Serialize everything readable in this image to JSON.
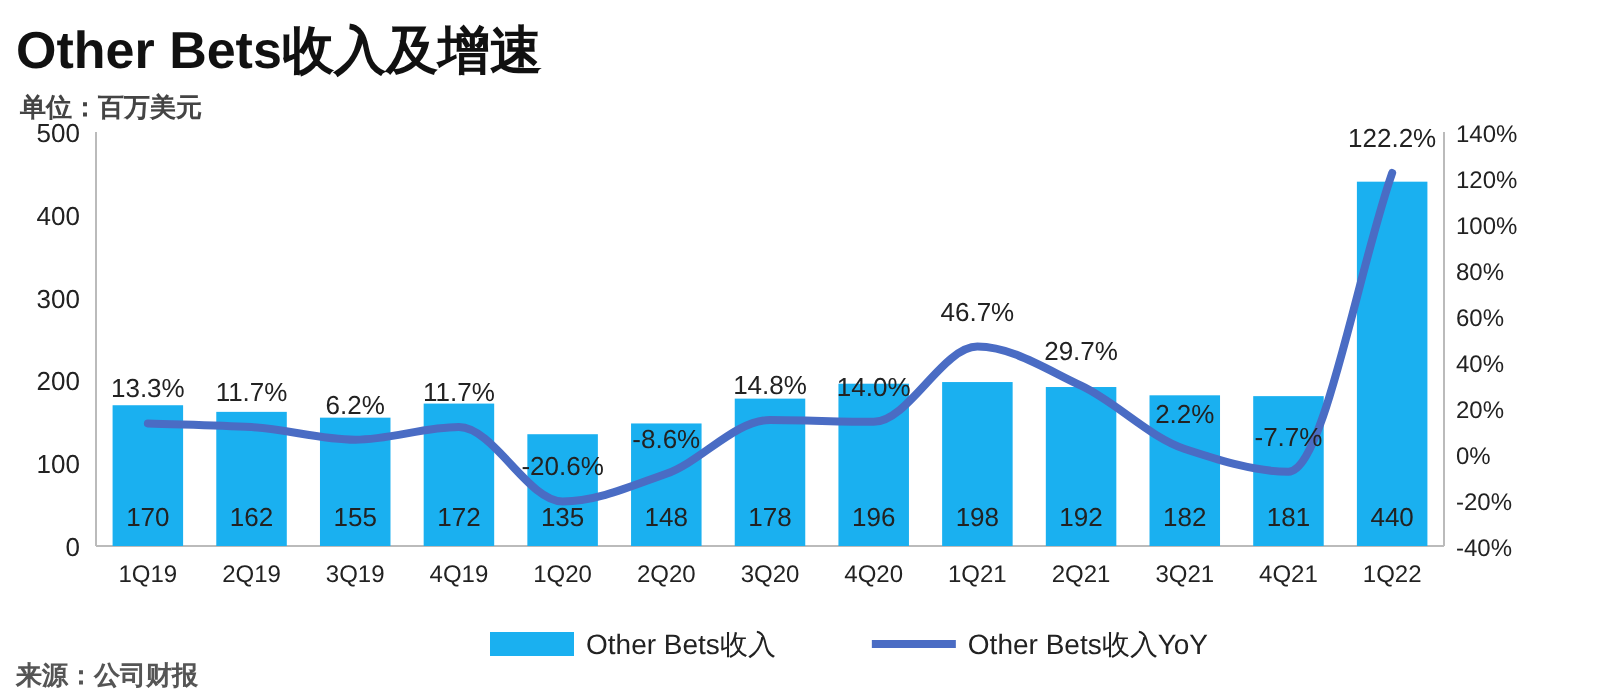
{
  "chart_data": {
    "type": "bar",
    "title": "Other Bets收入及增速",
    "subtitle": "单位：百万美元",
    "categories": [
      "1Q19",
      "2Q19",
      "3Q19",
      "4Q19",
      "1Q20",
      "2Q20",
      "3Q20",
      "4Q20",
      "1Q21",
      "2Q21",
      "3Q21",
      "4Q21",
      "1Q22"
    ],
    "series": [
      {
        "name": "Other Bets收入",
        "color": "#1ab0f0",
        "values": [
          170,
          162,
          155,
          172,
          135,
          148,
          178,
          196,
          198,
          192,
          182,
          181,
          440
        ],
        "value_labels": [
          "170",
          "162",
          "155",
          "172",
          "135",
          "148",
          "178",
          "196",
          "198",
          "192",
          "182",
          "181",
          "440"
        ]
      },
      {
        "name": "Other Bets收入YoY",
        "type": "line",
        "axis": "y2",
        "color": "#4a6cc4",
        "values": [
          13.3,
          11.7,
          6.2,
          11.7,
          -20.6,
          -8.6,
          14.8,
          14.0,
          46.7,
          29.7,
          2.2,
          -7.7,
          122.2
        ],
        "value_labels": [
          "13.3%",
          "11.7%",
          "6.2%",
          "11.7%",
          "-20.6%",
          "-8.6%",
          "14.8%",
          "14.0%",
          "46.7%",
          "29.7%",
          "2.2%",
          "-7.7%",
          "122.2%"
        ]
      }
    ],
    "ylim": [
      0,
      500
    ],
    "yticks": [
      0,
      100,
      200,
      300,
      400,
      500
    ],
    "y2lim": [
      -40,
      140
    ],
    "y2ticks": [
      {
        "value": -40,
        "label": "-40%"
      },
      {
        "value": -20,
        "label": "-20%"
      },
      {
        "value": 0,
        "label": "0%"
      },
      {
        "value": 20,
        "label": "20%"
      },
      {
        "value": 40,
        "label": "40%"
      },
      {
        "value": 60,
        "label": "60%"
      },
      {
        "value": 80,
        "label": "80%"
      },
      {
        "value": 100,
        "label": "100%"
      },
      {
        "value": 120,
        "label": "120%"
      },
      {
        "value": 140,
        "label": "140%"
      }
    ],
    "legend": "bottom",
    "annotations": [
      "来源：公司财报"
    ]
  }
}
